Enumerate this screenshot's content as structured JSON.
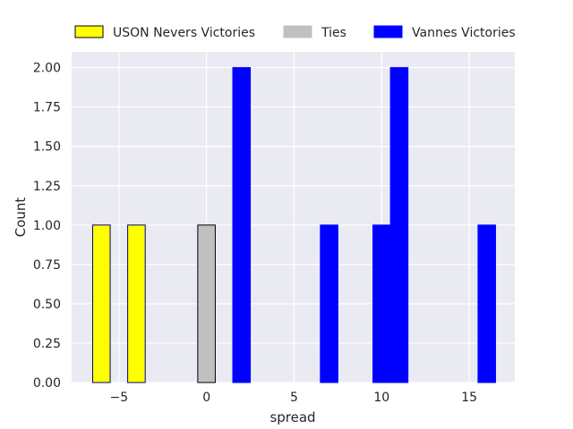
{
  "chart_data": {
    "type": "bar",
    "title": "",
    "xlabel": "spread",
    "ylabel": "Count",
    "xlim": [
      -7.7,
      17.6
    ],
    "ylim": [
      0,
      2.1
    ],
    "x_ticks": [
      -5,
      0,
      5,
      10,
      15
    ],
    "x_tick_labels": [
      "−5",
      "0",
      "5",
      "10",
      "15"
    ],
    "y_ticks": [
      0,
      0.25,
      0.5,
      0.75,
      1.0,
      1.25,
      1.5,
      1.75,
      2.0
    ],
    "y_tick_labels": [
      "0.00",
      "0.25",
      "0.50",
      "0.75",
      "1.00",
      "1.25",
      "1.50",
      "1.75",
      "2.00"
    ],
    "grid": true,
    "legend_position": "top, above plot",
    "series": [
      {
        "name": "USON Nevers Victories",
        "color": "#ffff00",
        "edge_color": "#000080",
        "bins": [
          {
            "x0": -6.5,
            "x1": -5.5,
            "count": 1
          },
          {
            "x0": -4.5,
            "x1": -3.5,
            "count": 1
          }
        ]
      },
      {
        "name": "Ties",
        "color": "#c0c0c0",
        "edge_color": "#000000",
        "bins": [
          {
            "x0": -0.5,
            "x1": 0.5,
            "count": 1
          }
        ]
      },
      {
        "name": "Vannes Victories",
        "color": "#0000ff",
        "edge_color": "#0000ff",
        "bins": [
          {
            "x0": 1.5,
            "x1": 2.5,
            "count": 2
          },
          {
            "x0": 6.5,
            "x1": 7.5,
            "count": 1
          },
          {
            "x0": 9.5,
            "x1": 10.5,
            "count": 1
          },
          {
            "x0": 10.5,
            "x1": 11.5,
            "count": 2
          },
          {
            "x0": 15.5,
            "x1": 16.5,
            "count": 1
          }
        ]
      }
    ]
  }
}
